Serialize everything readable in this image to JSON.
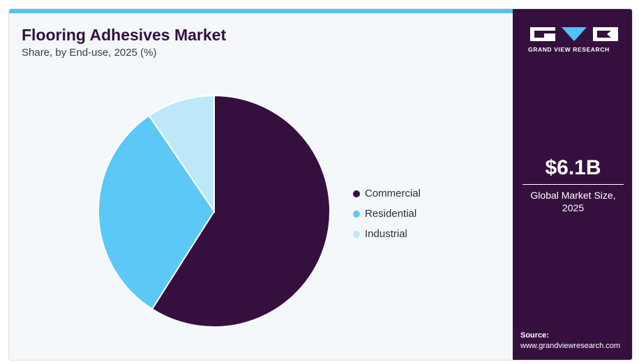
{
  "header": {
    "title": "Flooring Adhesives Market",
    "subtitle": "Share, by End-use, 2025 (%)"
  },
  "chart_data": {
    "type": "pie",
    "categories": [
      "Commercial",
      "Residential",
      "Industrial"
    ],
    "values": [
      59,
      31.5,
      9.5
    ],
    "colors": [
      "#35103f",
      "#5bc8f5",
      "#bde8f9"
    ],
    "legend_position": "right",
    "start_angle": "12 o'clock",
    "direction": "clockwise"
  },
  "legend": {
    "items": [
      {
        "label": "Commercial",
        "color": "#35103f"
      },
      {
        "label": "Residential",
        "color": "#5bc8f5"
      },
      {
        "label": "Industrial",
        "color": "#bde8f9"
      }
    ]
  },
  "side_panel": {
    "logo_text": "GRAND VIEW RESEARCH",
    "market_value": "$6.1B",
    "market_label_line1": "Global Market Size,",
    "market_label_line2": "2025",
    "source_title": "Source:",
    "source_url": "www.grandviewresearch.com",
    "background_color": "#35103f",
    "accent_color": "#4fc3f7"
  }
}
